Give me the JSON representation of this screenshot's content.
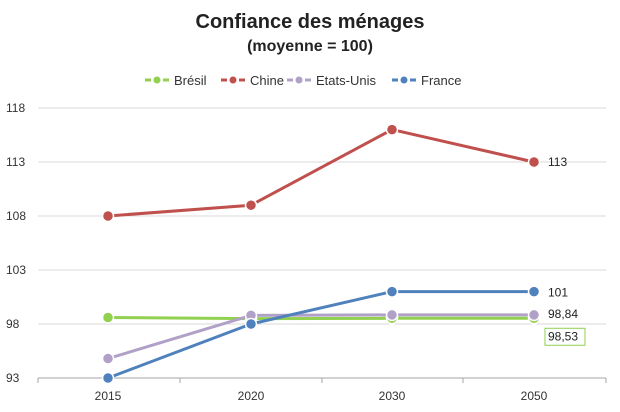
{
  "chart_data": {
    "type": "line",
    "title": "Confiance des ménages",
    "subtitle": "(moyenne = 100)",
    "categories": [
      "2015",
      "2020",
      "2030",
      "2050"
    ],
    "ylim": [
      93,
      118
    ],
    "yticks": [
      93,
      98,
      103,
      108,
      113,
      118
    ],
    "grid": true,
    "legend_position": "top",
    "series": [
      {
        "name": "Brésil",
        "color": "#92d050",
        "values": [
          98.6,
          98.5,
          98.53,
          98.53
        ]
      },
      {
        "name": "Chine",
        "color": "#c0504d",
        "values": [
          108,
          109,
          116,
          113
        ]
      },
      {
        "name": "Etats-Unis",
        "color": "#b1a0c7",
        "values": [
          94.8,
          98.8,
          98.84,
          98.84
        ]
      },
      {
        "name": "France",
        "color": "#4f81bd",
        "values": [
          93,
          98,
          101,
          101
        ]
      }
    ],
    "annotations": [
      {
        "series": "Chine",
        "index": 3,
        "text": "113",
        "boxed": false
      },
      {
        "series": "France",
        "index": 3,
        "text": "101",
        "boxed": false
      },
      {
        "series": "Etats-Unis",
        "index": 3,
        "text": "98,84",
        "boxed": false
      },
      {
        "series": "Brésil",
        "index": 3,
        "text": "98,53",
        "boxed": true
      }
    ]
  }
}
